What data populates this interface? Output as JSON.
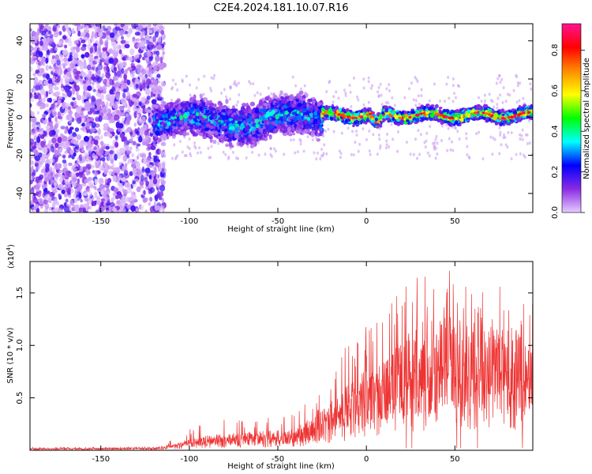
{
  "title": "C2E4.2024.181.10.07.R16",
  "chart_data": [
    {
      "type": "heatmap",
      "title": "C2E4.2024.181.10.07.R16",
      "xlabel": "Height of straight line (km)",
      "ylabel": "Frequency (Hz)",
      "xlim": [
        -190,
        94
      ],
      "ylim": [
        -50,
        49
      ],
      "xticks": [
        -150,
        -100,
        -50,
        0,
        50
      ],
      "yticks": [
        -40,
        -20,
        0,
        20,
        40
      ],
      "colorbar": {
        "label": "Normalized spectral amplitude",
        "range": [
          0.0,
          0.93
        ],
        "ticks": [
          0.0,
          0.2,
          0.4,
          0.6,
          0.8
        ],
        "colors": [
          "#e6ccff",
          "#8a2be2",
          "#0000ff",
          "#00ffff",
          "#00ff00",
          "#ffff00",
          "#ff8c00",
          "#ff0000",
          "#ff1493"
        ]
      },
      "regions": [
        {
          "name": "noise",
          "x_range": [
            -190,
            -120
          ],
          "freq_range": [
            -50,
            49
          ],
          "amplitude": 0.05
        },
        {
          "name": "weak-signal",
          "x_range": [
            -120,
            -25
          ],
          "freq_center": -2,
          "freq_halfwidth": 9,
          "amplitude": 0.2
        },
        {
          "name": "strong-signal",
          "x_range": [
            -25,
            94
          ],
          "freq_center": 1,
          "freq_halfwidth": 3,
          "amplitude": 0.6
        }
      ]
    },
    {
      "type": "line",
      "xlabel": "Height of straight line (km)",
      "ylabel": "SNR (10 * v/v)",
      "yscale_note": "(x10",
      "yscale_exp": "4",
      "yscale_close": ")",
      "xlim": [
        -190,
        94
      ],
      "ylim": [
        0,
        1.8
      ],
      "xticks": [
        -150,
        -100,
        -50,
        0,
        50
      ],
      "yticks": [
        0.5,
        1.0,
        1.5
      ],
      "series_color": "#ee3333",
      "envelope": {
        "x": [
          -190,
          -120,
          -110,
          -100,
          -90,
          -80,
          -60,
          -40,
          -30,
          -20,
          -10,
          0,
          10,
          20,
          30,
          40,
          50,
          60,
          70,
          80,
          94
        ],
        "typical": [
          0.015,
          0.02,
          0.04,
          0.08,
          0.1,
          0.12,
          0.13,
          0.15,
          0.25,
          0.35,
          0.45,
          0.55,
          0.65,
          0.78,
          0.88,
          0.92,
          0.95,
          0.95,
          0.9,
          0.88,
          0.85
        ],
        "peak": [
          0.03,
          0.035,
          0.1,
          0.2,
          0.35,
          0.3,
          0.3,
          0.35,
          0.55,
          0.75,
          1.05,
          1.2,
          1.45,
          1.55,
          1.7,
          1.6,
          1.8,
          1.55,
          1.65,
          1.5,
          1.45
        ]
      }
    }
  ]
}
